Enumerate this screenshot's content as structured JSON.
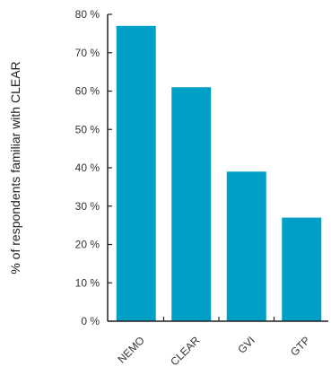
{
  "chart_data": {
    "type": "bar",
    "title": "",
    "xlabel": "",
    "ylabel": "% of respondents familiar with CLEAR",
    "categories": [
      "NEMO",
      "CLEAR",
      "GVI",
      "GTP"
    ],
    "values": [
      77,
      61,
      39,
      27
    ],
    "ylim": [
      0,
      80
    ],
    "yticks": [
      0,
      10,
      20,
      30,
      40,
      50,
      60,
      70,
      80
    ],
    "ytick_labels": [
      "0 %",
      "10 %",
      "20 %",
      "30 %",
      "40 %",
      "50 %",
      "60 %",
      "70 %",
      "80 %"
    ],
    "grid": false,
    "legend": "none",
    "colors": {
      "bar": "#00a0c6",
      "axis": "#222222"
    }
  }
}
